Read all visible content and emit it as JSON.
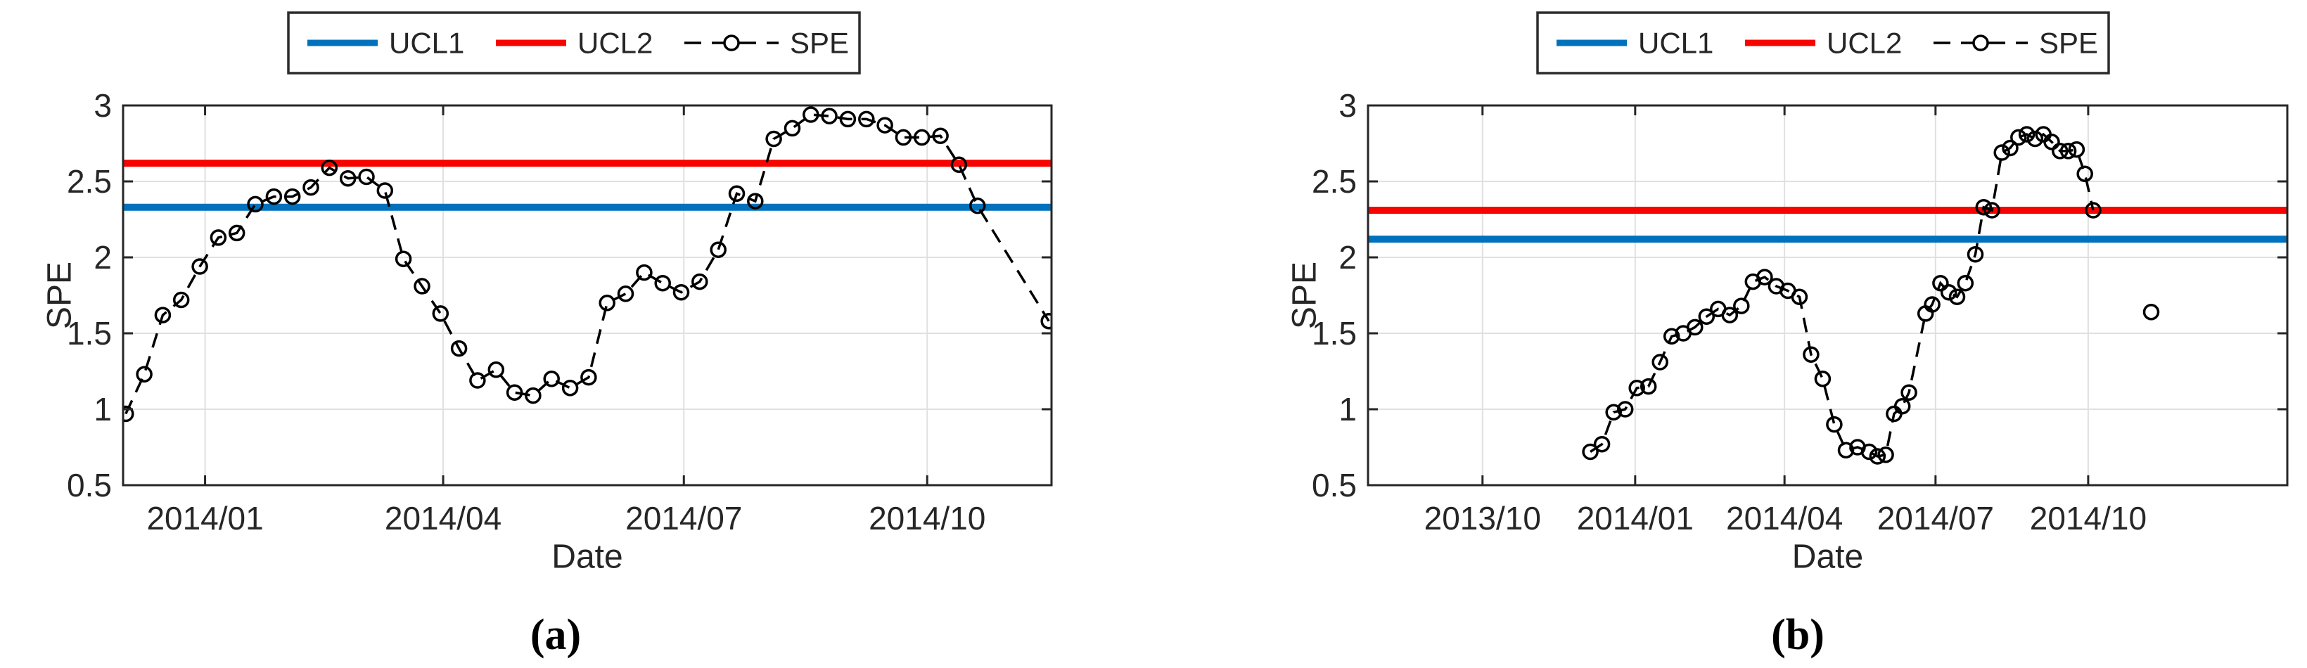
{
  "figure": {
    "background": "#FFFFFF",
    "caption_a": "(a)",
    "caption_b": "(b)"
  },
  "colors": {
    "ucl1": "#0072BD",
    "ucl2": "#F80400",
    "spe": "#000000",
    "grid": "#E0E0E0",
    "axis": "#262626",
    "legend_border": "#2B2B2B",
    "tick_label": "#262626"
  },
  "chart_data": [
    {
      "panel": "a",
      "type": "line",
      "caption": "(a)",
      "xlabel": "Date",
      "ylabel": "SPE",
      "grid": true,
      "legend_position": "above",
      "ylim": [
        0.5,
        3
      ],
      "yticks": [
        {
          "v": 3,
          "label": "3"
        },
        {
          "v": 2.5,
          "label": "2.5"
        },
        {
          "v": 2,
          "label": "2"
        },
        {
          "v": 1.5,
          "label": "1.5"
        },
        {
          "v": 1,
          "label": "1"
        },
        {
          "v": 0.5,
          "label": "0.5"
        }
      ],
      "xlim": [
        "2013/12/01",
        "2014/11/17"
      ],
      "xticks": [
        {
          "date": "2014/01/01",
          "label": "2014/01"
        },
        {
          "date": "2014/04/01",
          "label": "2014/04"
        },
        {
          "date": "2014/07/01",
          "label": "2014/07"
        },
        {
          "date": "2014/10/01",
          "label": "2014/10"
        }
      ],
      "legend": [
        {
          "label": "UCL1",
          "style": "solid",
          "color": "#0072BD"
        },
        {
          "label": "UCL2",
          "style": "solid",
          "color": "#F80400"
        },
        {
          "label": "SPE",
          "style": "dashcircle",
          "color": "#000000"
        }
      ],
      "series": [
        {
          "name": "UCL1",
          "type": "hline",
          "value": 2.33
        },
        {
          "name": "UCL2",
          "type": "hline",
          "value": 2.62
        },
        {
          "name": "SPE",
          "type": "dashline",
          "segments": [
            [
              [
                "2013/12/02",
                0.97
              ],
              [
                "2013/12/09",
                1.23
              ],
              [
                "2013/12/16",
                1.62
              ],
              [
                "2013/12/23",
                1.72
              ],
              [
                "2013/12/30",
                1.94
              ],
              [
                "2014/01/06",
                2.13
              ],
              [
                "2014/01/13",
                2.16
              ],
              [
                "2014/01/20",
                2.35
              ],
              [
                "2014/01/27",
                2.4
              ],
              [
                "2014/02/03",
                2.4
              ],
              [
                "2014/02/10",
                2.46
              ],
              [
                "2014/02/17",
                2.59
              ],
              [
                "2014/02/24",
                2.52
              ],
              [
                "2014/03/03",
                2.53
              ],
              [
                "2014/03/10",
                2.44
              ],
              [
                "2014/03/17",
                1.99
              ],
              [
                "2014/03/24",
                1.81
              ],
              [
                "2014/03/31",
                1.63
              ],
              [
                "2014/04/07",
                1.4
              ],
              [
                "2014/04/14",
                1.19
              ],
              [
                "2014/04/21",
                1.26
              ],
              [
                "2014/04/28",
                1.11
              ],
              [
                "2014/05/05",
                1.09
              ],
              [
                "2014/05/12",
                1.2
              ],
              [
                "2014/05/19",
                1.14
              ],
              [
                "2014/05/26",
                1.21
              ],
              [
                "2014/06/02",
                1.7
              ],
              [
                "2014/06/09",
                1.76
              ],
              [
                "2014/06/16",
                1.9
              ],
              [
                "2014/06/23",
                1.83
              ],
              [
                "2014/06/30",
                1.77
              ],
              [
                "2014/07/07",
                1.84
              ],
              [
                "2014/07/14",
                2.05
              ],
              [
                "2014/07/21",
                2.42
              ],
              [
                "2014/07/28",
                2.37
              ],
              [
                "2014/08/04",
                2.78
              ],
              [
                "2014/08/11",
                2.85
              ],
              [
                "2014/08/18",
                2.94
              ],
              [
                "2014/08/25",
                2.93
              ],
              [
                "2014/09/01",
                2.91
              ],
              [
                "2014/09/08",
                2.91
              ],
              [
                "2014/09/15",
                2.87
              ],
              [
                "2014/09/22",
                2.79
              ],
              [
                "2014/09/29",
                2.79
              ],
              [
                "2014/10/06",
                2.8
              ],
              [
                "2014/10/13",
                2.61
              ],
              [
                "2014/10/20",
                2.34
              ],
              [
                "2014/11/16",
                1.58
              ]
            ]
          ]
        }
      ]
    },
    {
      "panel": "b",
      "type": "line",
      "caption": "(b)",
      "xlabel": "Date",
      "ylabel": "SPE",
      "grid": true,
      "legend_position": "above",
      "ylim": [
        0.5,
        3
      ],
      "yticks": [
        {
          "v": 3,
          "label": "3"
        },
        {
          "v": 2.5,
          "label": "2.5"
        },
        {
          "v": 2,
          "label": "2"
        },
        {
          "v": 1.5,
          "label": "1.5"
        },
        {
          "v": 1,
          "label": "1"
        },
        {
          "v": 0.5,
          "label": "0.5"
        }
      ],
      "xlim": [
        "2013/07/24",
        "2015/01/29"
      ],
      "xticks": [
        {
          "date": "2013/10/01",
          "label": "2013/10"
        },
        {
          "date": "2014/01/01",
          "label": "2014/01"
        },
        {
          "date": "2014/04/01",
          "label": "2014/04"
        },
        {
          "date": "2014/07/01",
          "label": "2014/07"
        },
        {
          "date": "2014/10/01",
          "label": "2014/10"
        }
      ],
      "legend": [
        {
          "label": "UCL1",
          "style": "solid",
          "color": "#0072BD"
        },
        {
          "label": "UCL2",
          "style": "solid",
          "color": "#F80400"
        },
        {
          "label": "SPE",
          "style": "dashcircle",
          "color": "#000000"
        }
      ],
      "series": [
        {
          "name": "UCL1",
          "type": "hline",
          "value": 2.12
        },
        {
          "name": "UCL2",
          "type": "hline",
          "value": 2.31
        },
        {
          "name": "SPE",
          "type": "dashline",
          "segments": [
            [
              [
                "2013/12/05",
                0.72
              ],
              [
                "2013/12/12",
                0.77
              ],
              [
                "2013/12/19",
                0.98
              ],
              [
                "2013/12/26",
                1.0
              ],
              [
                "2014/01/02",
                1.14
              ],
              [
                "2014/01/09",
                1.15
              ],
              [
                "2014/01/16",
                1.31
              ],
              [
                "2014/01/23",
                1.48
              ],
              [
                "2014/01/30",
                1.5
              ],
              [
                "2014/02/06",
                1.54
              ],
              [
                "2014/02/13",
                1.61
              ],
              [
                "2014/02/20",
                1.66
              ],
              [
                "2014/02/27",
                1.62
              ],
              [
                "2014/03/06",
                1.68
              ],
              [
                "2014/03/13",
                1.84
              ],
              [
                "2014/03/20",
                1.87
              ],
              [
                "2014/03/27",
                1.81
              ],
              [
                "2014/04/03",
                1.78
              ],
              [
                "2014/04/10",
                1.74
              ],
              [
                "2014/04/17",
                1.36
              ],
              [
                "2014/04/24",
                1.2
              ],
              [
                "2014/05/01",
                0.9
              ],
              [
                "2014/05/08",
                0.73
              ],
              [
                "2014/05/15",
                0.75
              ],
              [
                "2014/05/22",
                0.72
              ],
              [
                "2014/05/27",
                0.69
              ],
              [
                "2014/06/01",
                0.7
              ],
              [
                "2014/06/06",
                0.97
              ],
              [
                "2014/06/11",
                1.02
              ],
              [
                "2014/06/15",
                1.11
              ],
              [
                "2014/06/25",
                1.63
              ],
              [
                "2014/06/29",
                1.69
              ],
              [
                "2014/07/04",
                1.83
              ],
              [
                "2014/07/09",
                1.77
              ],
              [
                "2014/07/14",
                1.74
              ],
              [
                "2014/07/19",
                1.83
              ],
              [
                "2014/07/25",
                2.02
              ],
              [
                "2014/07/30",
                2.33
              ],
              [
                "2014/08/04",
                2.31
              ],
              [
                "2014/08/10",
                2.69
              ],
              [
                "2014/08/15",
                2.72
              ],
              [
                "2014/08/20",
                2.79
              ],
              [
                "2014/08/25",
                2.81
              ],
              [
                "2014/08/30",
                2.78
              ],
              [
                "2014/09/04",
                2.81
              ],
              [
                "2014/09/09",
                2.76
              ],
              [
                "2014/09/14",
                2.7
              ],
              [
                "2014/09/19",
                2.7
              ],
              [
                "2014/09/24",
                2.71
              ],
              [
                "2014/09/29",
                2.55
              ],
              [
                "2014/10/04",
                2.31
              ]
            ],
            [
              [
                "2014/11/08",
                1.64
              ]
            ]
          ]
        }
      ]
    }
  ]
}
